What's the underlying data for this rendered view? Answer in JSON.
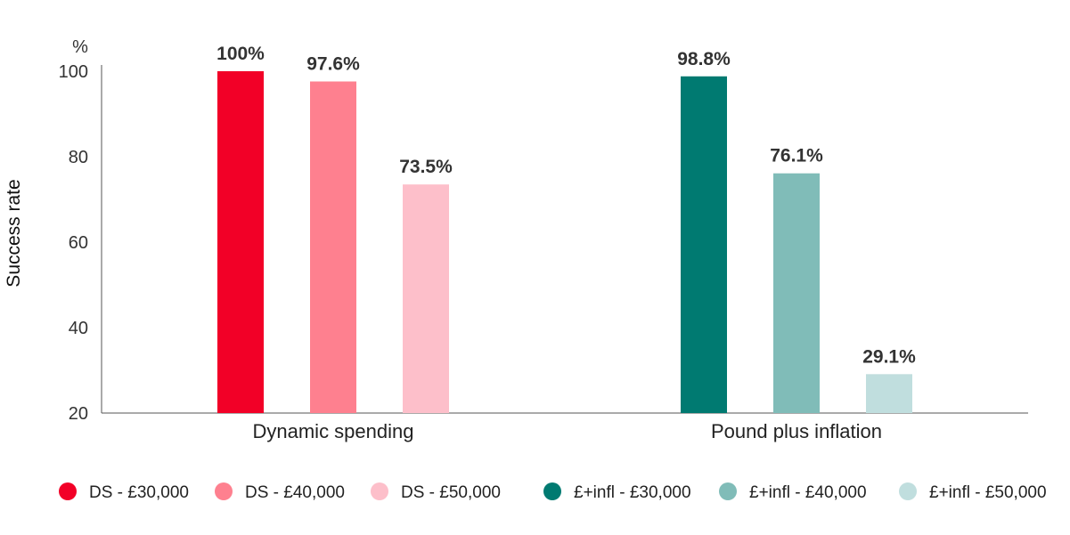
{
  "chart_data": {
    "type": "bar",
    "unit_label": "%",
    "xlabel": "",
    "ylabel": "Success rate",
    "ylim": [
      20,
      100
    ],
    "yticks": [
      20,
      40,
      60,
      80,
      100
    ],
    "grid": false,
    "legend_position": "bottom",
    "groups": [
      {
        "label": "Dynamic spending",
        "bars": [
          {
            "series": "DS - £30,000",
            "value": 100,
            "label": "100%",
            "color": "#f20027"
          },
          {
            "series": "DS - £40,000",
            "value": 97.6,
            "label": "97.6%",
            "color": "#fe808f"
          },
          {
            "series": "DS - £50,000",
            "value": 73.5,
            "label": "73.5%",
            "color": "#fdbfca"
          }
        ]
      },
      {
        "label": "Pound plus inflation",
        "bars": [
          {
            "series": "£+infl - £30,000",
            "value": 98.8,
            "label": "98.8%",
            "color": "#007a71"
          },
          {
            "series": "£+infl - £40,000",
            "value": 76.1,
            "label": "76.1%",
            "color": "#80bcb8"
          },
          {
            "series": "£+infl - £50,000",
            "value": 29.1,
            "label": "29.1%",
            "color": "#c0dede"
          }
        ]
      }
    ],
    "legend": [
      {
        "name": "DS - £30,000",
        "color": "#f20027"
      },
      {
        "name": "DS - £40,000",
        "color": "#fe808f"
      },
      {
        "name": "DS - £50,000",
        "color": "#fdbfca"
      },
      {
        "name": "£+infl - £30,000",
        "color": "#007a71"
      },
      {
        "name": "£+infl - £40,000",
        "color": "#80bcb8"
      },
      {
        "name": "£+infl - £50,000",
        "color": "#c0dede"
      }
    ]
  }
}
